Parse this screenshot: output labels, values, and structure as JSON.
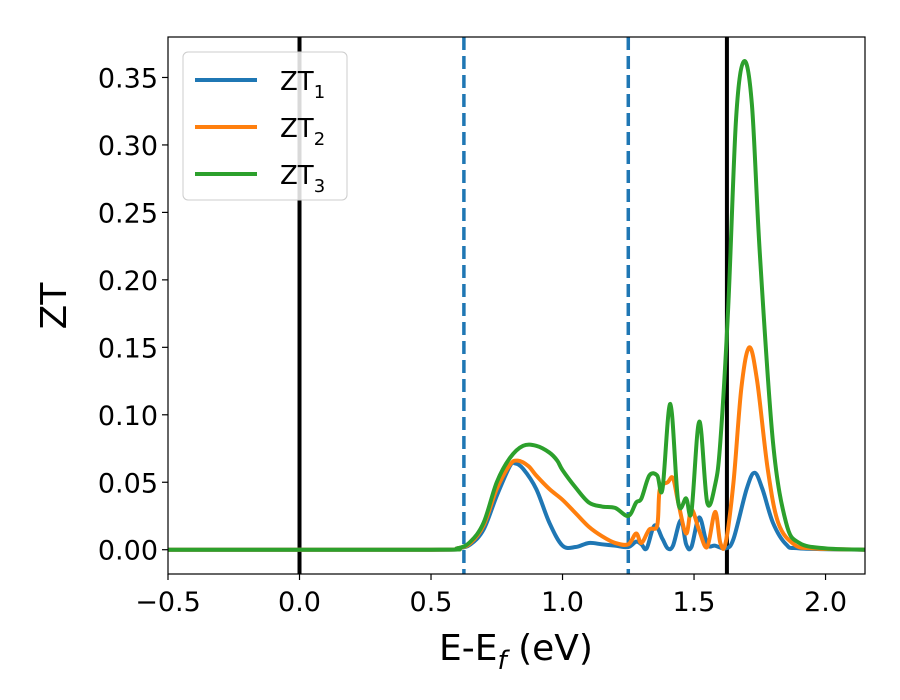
{
  "chart_data": {
    "type": "line",
    "xlabel": {
      "main": "E-E",
      "sub": "f",
      "suffix": " (eV)"
    },
    "ylabel": "ZT",
    "xlim": [
      -0.5,
      2.15
    ],
    "ylim": [
      -0.018,
      0.38
    ],
    "x_ticks": [
      -0.5,
      0.0,
      0.5,
      1.0,
      1.5,
      2.0
    ],
    "x_tick_labels": [
      "−0.5",
      "0.0",
      "0.5",
      "1.0",
      "1.5",
      "2.0"
    ],
    "y_ticks": [
      0.0,
      0.05,
      0.1,
      0.15,
      0.2,
      0.25,
      0.3,
      0.35
    ],
    "y_tick_labels": [
      "0.00",
      "0.05",
      "0.10",
      "0.15",
      "0.20",
      "0.25",
      "0.30",
      "0.35"
    ],
    "grid": false,
    "legend_position": "top-left",
    "vertical_lines": [
      {
        "x": 0.0,
        "style": "solid",
        "color": "#000000"
      },
      {
        "x": 0.625,
        "style": "dashed",
        "color": "#1f77b4"
      },
      {
        "x": 1.25,
        "style": "dashed",
        "color": "#1f77b4"
      },
      {
        "x": 1.625,
        "style": "solid",
        "color": "#000000"
      }
    ],
    "series": [
      {
        "name": "ZT",
        "subscript": "1",
        "color": "#1f77b4",
        "points": [
          [
            -0.5,
            0
          ],
          [
            0.5,
            0
          ],
          [
            0.6,
            0.001
          ],
          [
            0.65,
            0.004
          ],
          [
            0.7,
            0.015
          ],
          [
            0.75,
            0.04
          ],
          [
            0.8,
            0.062
          ],
          [
            0.82,
            0.064
          ],
          [
            0.85,
            0.06
          ],
          [
            0.9,
            0.045
          ],
          [
            0.95,
            0.02
          ],
          [
            1.0,
            0.003
          ],
          [
            1.05,
            0.002
          ],
          [
            1.1,
            0.005
          ],
          [
            1.15,
            0.004
          ],
          [
            1.2,
            0.003
          ],
          [
            1.25,
            0.002
          ],
          [
            1.28,
            0.006
          ],
          [
            1.3,
            0.004
          ],
          [
            1.32,
            0.001
          ],
          [
            1.35,
            0.018
          ],
          [
            1.38,
            0.008
          ],
          [
            1.4,
            0.001
          ],
          [
            1.42,
            0.003
          ],
          [
            1.45,
            0.022
          ],
          [
            1.47,
            0.004
          ],
          [
            1.49,
            0.002
          ],
          [
            1.52,
            0.024
          ],
          [
            1.55,
            0.004
          ],
          [
            1.58,
            0.003
          ],
          [
            1.62,
            0.001
          ],
          [
            1.65,
            0.008
          ],
          [
            1.7,
            0.045
          ],
          [
            1.73,
            0.057
          ],
          [
            1.76,
            0.045
          ],
          [
            1.8,
            0.02
          ],
          [
            1.85,
            0.004
          ],
          [
            1.9,
            0.001
          ],
          [
            2.15,
            0
          ]
        ]
      },
      {
        "name": "ZT",
        "subscript": "2",
        "color": "#ff7f0e",
        "points": [
          [
            -0.5,
            0
          ],
          [
            0.5,
            0
          ],
          [
            0.6,
            0.001
          ],
          [
            0.65,
            0.005
          ],
          [
            0.7,
            0.018
          ],
          [
            0.75,
            0.045
          ],
          [
            0.8,
            0.063
          ],
          [
            0.83,
            0.066
          ],
          [
            0.87,
            0.062
          ],
          [
            0.9,
            0.055
          ],
          [
            0.95,
            0.045
          ],
          [
            1.0,
            0.037
          ],
          [
            1.05,
            0.027
          ],
          [
            1.1,
            0.017
          ],
          [
            1.15,
            0.01
          ],
          [
            1.2,
            0.005
          ],
          [
            1.25,
            0.004
          ],
          [
            1.28,
            0.012
          ],
          [
            1.3,
            0.005
          ],
          [
            1.33,
            0.015
          ],
          [
            1.36,
            0.018
          ],
          [
            1.37,
            0.045
          ],
          [
            1.4,
            0.05
          ],
          [
            1.42,
            0.053
          ],
          [
            1.44,
            0.035
          ],
          [
            1.47,
            0.012
          ],
          [
            1.49,
            0.03
          ],
          [
            1.52,
            0.014
          ],
          [
            1.55,
            0.002
          ],
          [
            1.58,
            0.028
          ],
          [
            1.6,
            0.005
          ],
          [
            1.62,
            0.005
          ],
          [
            1.65,
            0.05
          ],
          [
            1.68,
            0.12
          ],
          [
            1.71,
            0.15
          ],
          [
            1.74,
            0.125
          ],
          [
            1.78,
            0.06
          ],
          [
            1.82,
            0.02
          ],
          [
            1.88,
            0.004
          ],
          [
            1.95,
            0.001
          ],
          [
            2.15,
            0
          ]
        ]
      },
      {
        "name": "ZT",
        "subscript": "3",
        "color": "#2ca02c",
        "points": [
          [
            -0.5,
            0
          ],
          [
            0.5,
            0
          ],
          [
            0.6,
            0.001
          ],
          [
            0.65,
            0.006
          ],
          [
            0.7,
            0.02
          ],
          [
            0.75,
            0.05
          ],
          [
            0.8,
            0.068
          ],
          [
            0.85,
            0.077
          ],
          [
            0.9,
            0.077
          ],
          [
            0.95,
            0.072
          ],
          [
            0.98,
            0.066
          ],
          [
            1.0,
            0.059
          ],
          [
            1.05,
            0.046
          ],
          [
            1.1,
            0.035
          ],
          [
            1.15,
            0.032
          ],
          [
            1.2,
            0.031
          ],
          [
            1.25,
            0.025
          ],
          [
            1.28,
            0.035
          ],
          [
            1.3,
            0.038
          ],
          [
            1.33,
            0.055
          ],
          [
            1.36,
            0.055
          ],
          [
            1.38,
            0.045
          ],
          [
            1.41,
            0.108
          ],
          [
            1.44,
            0.035
          ],
          [
            1.47,
            0.038
          ],
          [
            1.49,
            0.028
          ],
          [
            1.52,
            0.095
          ],
          [
            1.55,
            0.035
          ],
          [
            1.58,
            0.048
          ],
          [
            1.6,
            0.08
          ],
          [
            1.63,
            0.18
          ],
          [
            1.66,
            0.32
          ],
          [
            1.69,
            0.362
          ],
          [
            1.72,
            0.33
          ],
          [
            1.75,
            0.22
          ],
          [
            1.8,
            0.08
          ],
          [
            1.85,
            0.02
          ],
          [
            1.9,
            0.005
          ],
          [
            2.0,
            0.001
          ],
          [
            2.15,
            0
          ]
        ]
      }
    ]
  }
}
